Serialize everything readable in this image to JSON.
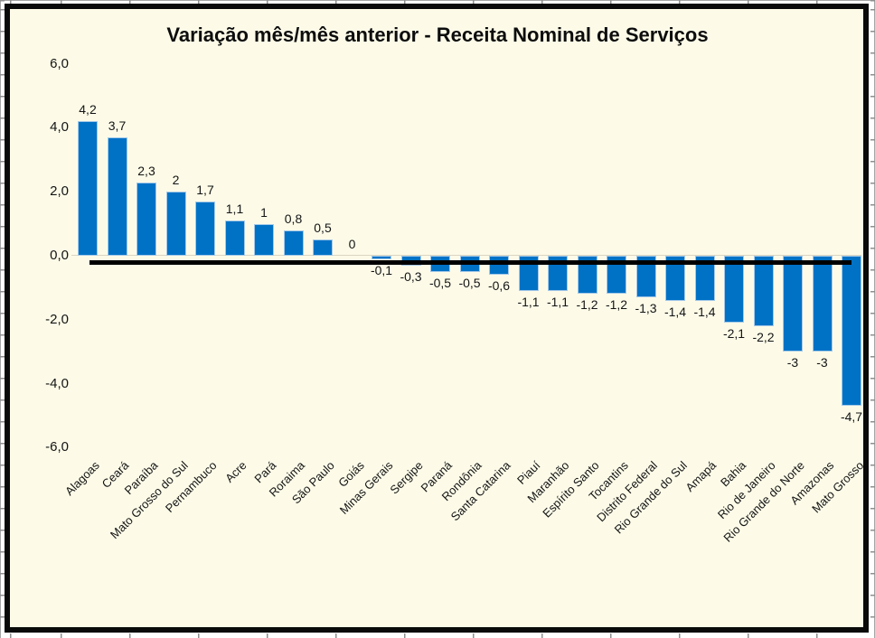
{
  "title": "Variação mês/mês anterior - Receita Nominal de Serviços",
  "chart_data": {
    "type": "bar",
    "title": "Variação mês/mês anterior - Receita Nominal de Serviços",
    "xlabel": "",
    "ylabel": "",
    "ylim": [
      -6.0,
      6.0
    ],
    "grid": false,
    "legend": "none",
    "decimal_separator": ",",
    "categories": [
      "Alagoas",
      "Ceará",
      "Paraíba",
      "Mato Grosso do Sul",
      "Pernambuco",
      "Acre",
      "Pará",
      "Roraima",
      "São Paulo",
      "Goiás",
      "Minas Gerais",
      "Sergipe",
      "Paraná",
      "Rondônia",
      "Santa Catarina",
      "Piauí",
      "Maranhão",
      "Espírito Santo",
      "Tocantins",
      "Distrito Federal",
      "Rio Grande do Sul",
      "Amapá",
      "Bahia",
      "Rio de Janeiro",
      "Rio Grande do Norte",
      "Amazonas",
      "Mato Grosso"
    ],
    "values": [
      4.2,
      3.7,
      2.3,
      2,
      1.7,
      1.1,
      1,
      0.8,
      0.5,
      0,
      -0.1,
      -0.3,
      -0.5,
      -0.5,
      -0.6,
      -1.1,
      -1.1,
      -1.2,
      -1.2,
      -1.3,
      -1.4,
      -1.4,
      -2.1,
      -2.2,
      -3,
      -3,
      -4.7
    ],
    "value_labels": [
      "4,2",
      "3,7",
      "2,3",
      "2",
      "1,7",
      "1,1",
      "1",
      "0,8",
      "0,5",
      "0",
      "-0,1",
      "-0,3",
      "-0,5",
      "-0,5",
      "-0,6",
      "-1,1",
      "-1,1",
      "-1,2",
      "-1,2",
      "-1,3",
      "-1,4",
      "-1,4",
      "-2,1",
      "-2,2",
      "-3",
      "-3",
      "-4,7"
    ],
    "y_ticks": [
      {
        "label": "6,0",
        "value": 6
      },
      {
        "label": "4,0",
        "value": 4
      },
      {
        "label": "2,0",
        "value": 2
      },
      {
        "label": "0,0",
        "value": 0
      },
      {
        "label": "-2,0",
        "value": -2
      },
      {
        "label": "-4,0",
        "value": -4
      },
      {
        "label": "-6,0",
        "value": -6
      }
    ],
    "colors": {
      "bar": "#0072C6",
      "bar_border": "#A6C9E8",
      "plot_background": "#FDFBE8",
      "chart_border": "#000000",
      "zero_line": "#000000",
      "axis_line": "#D9D5C2",
      "text": "#141414"
    }
  }
}
